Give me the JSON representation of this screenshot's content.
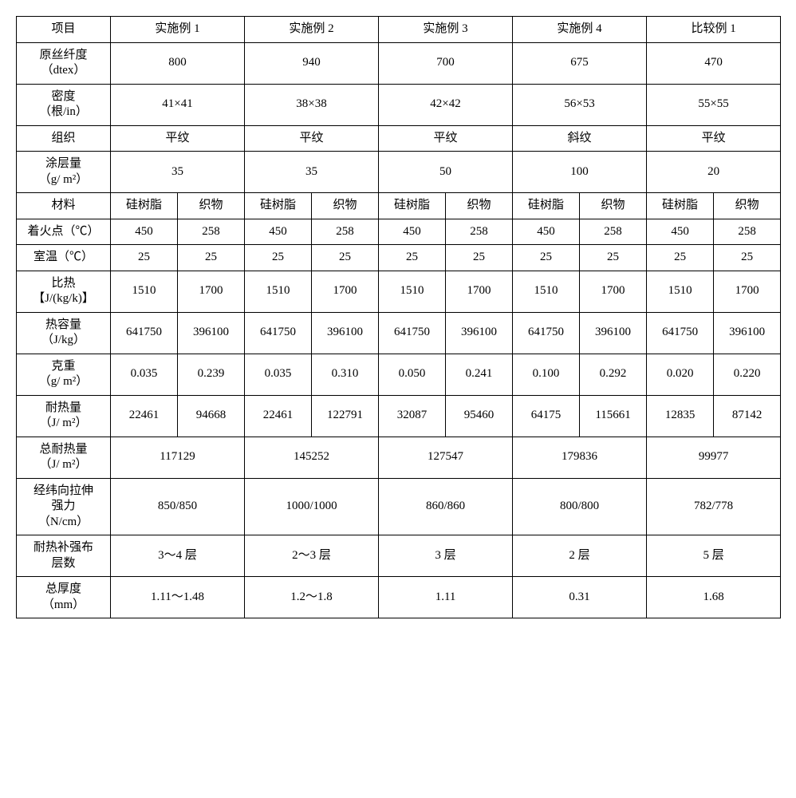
{
  "table": {
    "background_color": "#ffffff",
    "border_color": "#000000",
    "font_family": "SimSun",
    "font_size": 15,
    "headers": {
      "项目": "项目",
      "实施例1": "实施例 1",
      "实施例2": "实施例 2",
      "实施例3": "实施例 3",
      "实施例4": "实施例 4",
      "比较例1": "比较例 1"
    },
    "row_labels": {
      "原丝纤度": "原丝纤度\n（dtex）",
      "密度": "密度\n（根/in）",
      "组织": "组织",
      "涂层量": "涂层量\n（g/ m²）",
      "材料": "材料",
      "着火点": "着火点（℃）",
      "室温": "室温（℃）",
      "比热": "比热\n【J/(kg/k)】",
      "热容量": "热容量\n（J/kg）",
      "克重": "克重\n（g/ m²）",
      "耐热量": "耐热量\n（J/ m²）",
      "总耐热量": "总耐热量\n（J/ m²）",
      "经纬向拉伸强力": "经纬向拉伸\n强力\n（N/cm）",
      "耐热补强布层数": "耐热补强布\n层数",
      "总厚度": "总厚度\n（mm）"
    },
    "subheaders": {
      "硅树脂": "硅树脂",
      "织物": "织物"
    },
    "data": {
      "原丝纤度": [
        "800",
        "940",
        "700",
        "675",
        "470"
      ],
      "密度": [
        "41×41",
        "38×38",
        "42×42",
        "56×53",
        "55×55"
      ],
      "组织": [
        "平纹",
        "平纹",
        "平纹",
        "斜纹",
        "平纹"
      ],
      "涂层量": [
        "35",
        "35",
        "50",
        "100",
        "20"
      ],
      "着火点": [
        [
          "450",
          "258"
        ],
        [
          "450",
          "258"
        ],
        [
          "450",
          "258"
        ],
        [
          "450",
          "258"
        ],
        [
          "450",
          "258"
        ]
      ],
      "室温": [
        [
          "25",
          "25"
        ],
        [
          "25",
          "25"
        ],
        [
          "25",
          "25"
        ],
        [
          "25",
          "25"
        ],
        [
          "25",
          "25"
        ]
      ],
      "比热": [
        [
          "1510",
          "1700"
        ],
        [
          "1510",
          "1700"
        ],
        [
          "1510",
          "1700"
        ],
        [
          "1510",
          "1700"
        ],
        [
          "1510",
          "1700"
        ]
      ],
      "热容量": [
        [
          "641750",
          "396100"
        ],
        [
          "641750",
          "396100"
        ],
        [
          "641750",
          "396100"
        ],
        [
          "641750",
          "396100"
        ],
        [
          "641750",
          "396100"
        ]
      ],
      "克重": [
        [
          "0.035",
          "0.239"
        ],
        [
          "0.035",
          "0.310"
        ],
        [
          "0.050",
          "0.241"
        ],
        [
          "0.100",
          "0.292"
        ],
        [
          "0.020",
          "0.220"
        ]
      ],
      "耐热量": [
        [
          "22461",
          "94668"
        ],
        [
          "22461",
          "122791"
        ],
        [
          "32087",
          "95460"
        ],
        [
          "64175",
          "115661"
        ],
        [
          "12835",
          "87142"
        ]
      ],
      "总耐热量": [
        "117129",
        "145252",
        "127547",
        "179836",
        "99977"
      ],
      "经纬向拉伸强力": [
        "850/850",
        "1000/1000",
        "860/860",
        "800/800",
        "782/778"
      ],
      "耐热补强布层数": [
        "3～4 层",
        "2～3 层",
        "3 层",
        "2 层",
        "5 层"
      ],
      "总厚度": [
        "1.11～1.48",
        "1.2～1.8",
        "1.11",
        "0.31",
        "1.68"
      ]
    }
  }
}
